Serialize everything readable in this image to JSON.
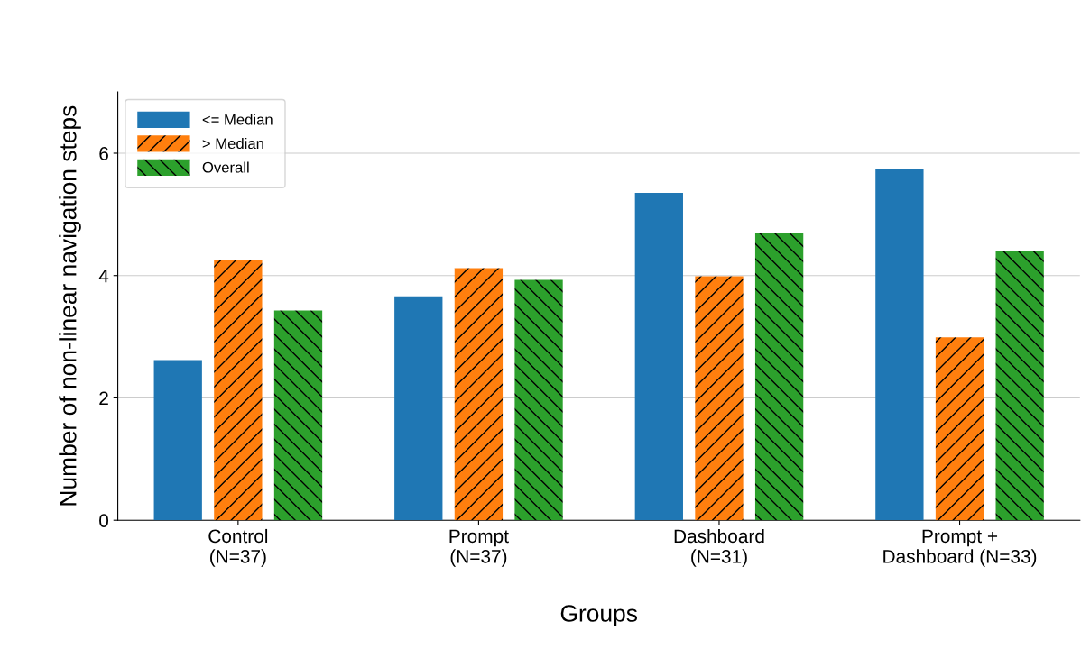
{
  "chart_data": {
    "type": "bar",
    "xlabel": "Groups",
    "ylabel": "Number of non-linear navigation steps",
    "categories": [
      "Control\n(N=37)",
      "Prompt\n(N=37)",
      "Dashboard\n(N=31)",
      "Prompt +\nDashboard (N=33)"
    ],
    "series": [
      {
        "name": "<= Median",
        "color": "#1f77b4",
        "values": [
          2.62,
          3.66,
          5.35,
          5.75
        ]
      },
      {
        "name": "> Median",
        "color": "#ff7f0e",
        "values": [
          4.26,
          4.12,
          3.99,
          2.99
        ]
      },
      {
        "name": "Overall",
        "color": "#2ca02c",
        "values": [
          3.43,
          3.93,
          4.69,
          4.41
        ]
      }
    ],
    "ylim": [
      0,
      7
    ],
    "yticks": [
      0,
      2,
      4,
      6
    ],
    "grid": "y",
    "legend": "top left"
  }
}
